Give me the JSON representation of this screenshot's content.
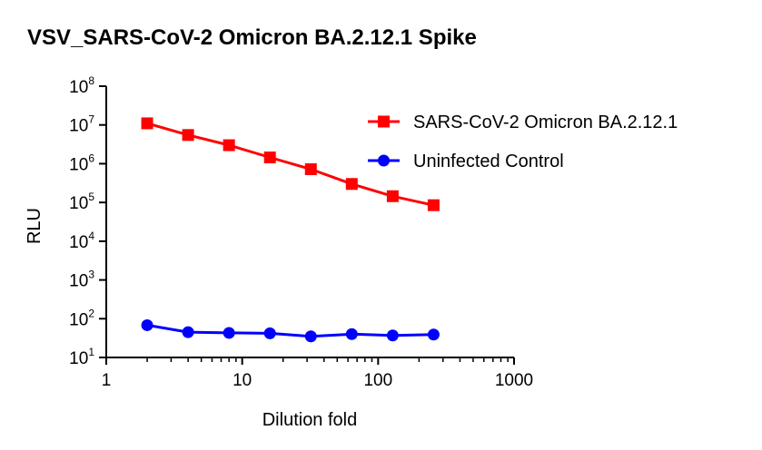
{
  "chart_data": {
    "type": "line",
    "title": "VSV_SARS-CoV-2 Omicron BA.2.12.1 Spike",
    "xlabel": "Dilution fold",
    "ylabel": "RLU",
    "x_scale": "log",
    "y_scale": "log",
    "xlim": [
      1,
      1000
    ],
    "ylim": [
      10,
      100000000
    ],
    "x_ticks": [
      {
        "value": 1,
        "label": "1"
      },
      {
        "value": 10,
        "label": "10"
      },
      {
        "value": 100,
        "label": "100"
      },
      {
        "value": 1000,
        "label": "1000"
      }
    ],
    "y_ticks": [
      {
        "value": 10,
        "base": "10",
        "exp": "1"
      },
      {
        "value": 100,
        "base": "10",
        "exp": "2"
      },
      {
        "value": 1000,
        "base": "10",
        "exp": "3"
      },
      {
        "value": 10000,
        "base": "10",
        "exp": "4"
      },
      {
        "value": 100000,
        "base": "10",
        "exp": "5"
      },
      {
        "value": 1000000,
        "base": "10",
        "exp": "6"
      },
      {
        "value": 10000000,
        "base": "10",
        "exp": "7"
      },
      {
        "value": 100000000,
        "base": "10",
        "exp": "8"
      }
    ],
    "grid": false,
    "legend_position": "top-right",
    "x": [
      2,
      4,
      8,
      16,
      32,
      64,
      128,
      256
    ],
    "series": [
      {
        "name": "SARS-CoV-2 Omicron BA.2.12.1",
        "color": "#ff0000",
        "marker": "square",
        "values": [
          11000000,
          5500000,
          3000000,
          1450000,
          720000,
          300000,
          145000,
          85000
        ]
      },
      {
        "name": "Uninfected Control",
        "color": "#0000ff",
        "marker": "circle",
        "values": [
          68,
          45,
          43,
          42,
          35,
          40,
          37,
          39
        ]
      }
    ]
  }
}
